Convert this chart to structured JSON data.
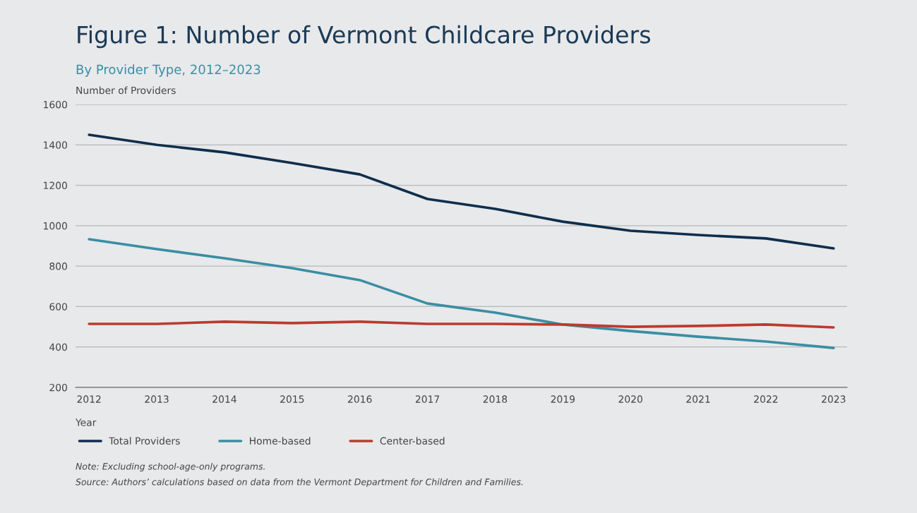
{
  "chart_data": {
    "type": "line",
    "title": "Figure 1: Number of Vermont Childcare Providers",
    "subtitle": "By Provider Type, 2012–2023",
    "xlabel": "Year",
    "ylabel": "Number of Providers",
    "x": [
      2012,
      2013,
      2014,
      2015,
      2016,
      2017,
      2018,
      2019,
      2020,
      2021,
      2022,
      2023
    ],
    "series": [
      {
        "name": "Total Providers",
        "color": "#0f2e4c",
        "values": [
          1450,
          1400,
          1363,
          1310,
          1254,
          1132,
          1083,
          1020,
          975,
          954,
          937,
          888
        ]
      },
      {
        "name": "Home-based",
        "color": "#3a8ea3",
        "values": [
          933,
          884,
          839,
          790,
          731,
          615,
          570,
          511,
          479,
          451,
          427,
          395
        ]
      },
      {
        "name": "Center-based",
        "color": "#bd3a2e",
        "values": [
          514,
          514,
          525,
          518,
          525,
          514,
          514,
          511,
          500,
          504,
          511,
          497
        ]
      }
    ],
    "xlim": [
      2011.8,
      2023.2
    ],
    "xticks": [
      2012,
      2013,
      2014,
      2015,
      2016,
      2017,
      2018,
      2019,
      2020,
      2021,
      2022,
      2023
    ],
    "ylim": [
      200,
      1600
    ],
    "yticks": [
      200,
      400,
      600,
      800,
      1000,
      1200,
      1400,
      1600
    ],
    "grid": "y",
    "legend": "bottom",
    "marker": "none",
    "line_style": "solid",
    "annotations": [
      "Note: Excluding school-age-only programs.",
      "Source: Authors’ calculations based on data from the Vermont Department for Children and Families."
    ]
  }
}
